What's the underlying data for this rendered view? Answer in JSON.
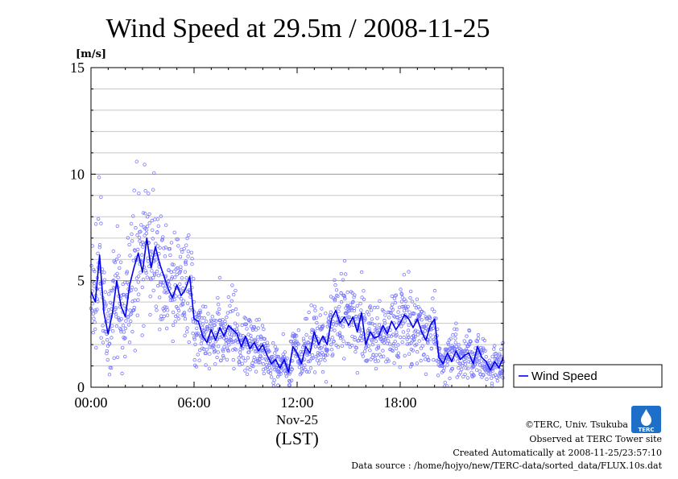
{
  "chart_data": {
    "type": "line",
    "title": "Wind Speed at 29.5m / 2008-11-25",
    "ylabel": "[m/s]",
    "xlabel": "Nov-25",
    "xlabel_sub": "(LST)",
    "xlim": [
      0,
      24
    ],
    "ylim": [
      0,
      15
    ],
    "x_ticks": [
      {
        "value": 0,
        "label": "00:00"
      },
      {
        "value": 6,
        "label": "06:00"
      },
      {
        "value": 12,
        "label": "12:00"
      },
      {
        "value": 18,
        "label": "18:00"
      }
    ],
    "y_ticks": [
      {
        "value": 0,
        "label": "0"
      },
      {
        "value": 5,
        "label": "5"
      },
      {
        "value": 10,
        "label": "10"
      },
      {
        "value": 15,
        "label": "15"
      }
    ],
    "grid": true,
    "legend_position": "right",
    "series": [
      {
        "name": "Wind Speed",
        "color": "#0000ee",
        "scatter_color": "#7777ff",
        "x": [
          0.0,
          0.25,
          0.5,
          0.75,
          1.0,
          1.25,
          1.5,
          1.75,
          2.0,
          2.25,
          2.5,
          2.75,
          3.0,
          3.25,
          3.5,
          3.75,
          4.0,
          4.25,
          4.5,
          4.75,
          5.0,
          5.25,
          5.5,
          5.75,
          6.0,
          6.25,
          6.5,
          6.75,
          7.0,
          7.25,
          7.5,
          7.75,
          8.0,
          8.25,
          8.5,
          8.75,
          9.0,
          9.25,
          9.5,
          9.75,
          10.0,
          10.25,
          10.5,
          10.75,
          11.0,
          11.25,
          11.5,
          11.75,
          12.0,
          12.25,
          12.5,
          12.75,
          13.0,
          13.25,
          13.5,
          13.75,
          14.0,
          14.25,
          14.5,
          14.75,
          15.0,
          15.25,
          15.5,
          15.75,
          16.0,
          16.25,
          16.5,
          16.75,
          17.0,
          17.25,
          17.5,
          17.75,
          18.0,
          18.25,
          18.5,
          18.75,
          19.0,
          19.25,
          19.5,
          19.75,
          20.0,
          20.25,
          20.5,
          20.75,
          21.0,
          21.25,
          21.5,
          21.75,
          22.0,
          22.25,
          22.5,
          22.75,
          23.0,
          23.25,
          23.5,
          23.75,
          24.0
        ],
        "values": [
          4.5,
          4.0,
          6.2,
          3.5,
          2.5,
          3.5,
          5.0,
          3.8,
          3.3,
          4.8,
          5.6,
          6.3,
          5.4,
          7.0,
          5.6,
          6.6,
          5.8,
          5.2,
          4.6,
          4.2,
          4.8,
          4.3,
          4.6,
          5.2,
          3.2,
          3.1,
          2.4,
          2.1,
          2.7,
          2.2,
          2.8,
          2.4,
          2.9,
          2.7,
          2.5,
          1.9,
          2.4,
          1.8,
          2.1,
          1.7,
          2.0,
          1.5,
          1.1,
          1.3,
          0.9,
          1.3,
          0.7,
          1.9,
          1.6,
          1.1,
          1.9,
          1.6,
          2.6,
          2.0,
          2.4,
          2.0,
          3.2,
          3.6,
          3.0,
          3.3,
          2.9,
          3.3,
          2.6,
          3.5,
          2.0,
          2.6,
          2.3,
          2.4,
          2.9,
          2.5,
          3.1,
          2.7,
          3.0,
          3.4,
          3.2,
          2.8,
          3.2,
          2.6,
          2.2,
          2.9,
          3.2,
          1.4,
          1.1,
          1.6,
          1.2,
          1.7,
          1.3,
          1.5,
          1.6,
          1.1,
          1.9,
          1.4,
          1.2,
          0.8,
          1.2,
          0.9,
          1.4
        ]
      }
    ]
  },
  "credits": {
    "copyright": "©TERC, Univ. Tsukuba",
    "observed": "Observed at TERC Tower site",
    "created": "Created Automatically at 2008-11-25/23:57:10",
    "source": "Data source : /home/hojyo/new/TERC-data/sorted_data/FLUX.10s.dat",
    "logo_text": "TERC",
    "logo_color": "#1e6fc8"
  }
}
